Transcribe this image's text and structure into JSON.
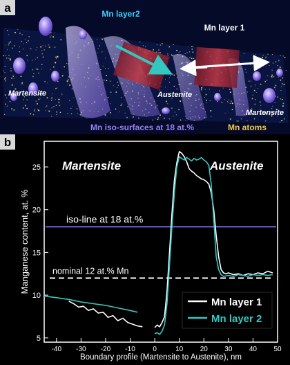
{
  "panel_a": {
    "letter": "a",
    "label_layer2": "Mn layer2",
    "label_layer1": "Mn layer 1",
    "label_martensite_left": "Martensite",
    "label_austenite": "Austenite",
    "label_martensite_right": "Martensite",
    "legend_iso": "Mn iso-surfaces at 18 at.%",
    "legend_atoms": "Mn atoms",
    "colors": {
      "background": "#040a28",
      "atoms": "#e8e070",
      "iso": "#9a7ff0",
      "layer": "#b8303a",
      "arrow_layer2": "#33c7c0",
      "arrow_layer1": "#ffffff"
    }
  },
  "panel_b": {
    "letter": "b",
    "label_martensite": "Martensite",
    "label_austenite": "Austenite",
    "iso_line_label": "iso-line at 18 at.%",
    "nominal_label": "nominal 12 at.% Mn",
    "colors": {
      "layer1": "#ffffff",
      "layer2": "#35c9c4",
      "iso_line": "#7060e0",
      "nominal": "#ffffff"
    }
  },
  "chart_data": {
    "type": "line",
    "xlabel": "Boundary profile (Martensite to Austenite), nm",
    "ylabel": "Manganese content, at. %",
    "xlim": [
      -45,
      50
    ],
    "ylim": [
      4.5,
      28
    ],
    "xticks": [
      -40,
      -30,
      -20,
      -10,
      0,
      10,
      20,
      30,
      40,
      50
    ],
    "yticks": [
      5,
      10,
      15,
      20,
      25
    ],
    "grid": false,
    "legend_position": "bottom-right",
    "reference_lines": [
      {
        "label": "iso-line at 18 at.%",
        "y": 18,
        "style": "solid"
      },
      {
        "label": "nominal 12 at.% Mn",
        "y": 12,
        "style": "dashed"
      }
    ],
    "series": [
      {
        "name": "Mn layer 1",
        "color": "#ffffff",
        "segments": [
          {
            "x": [
              -35,
              -33,
              -31,
              -29,
              -27,
              -25,
              -23,
              -21,
              -19,
              -17,
              -15,
              -13,
              -11,
              -9,
              -7,
              -5
            ],
            "y": [
              9.3,
              9.0,
              8.6,
              8.7,
              8.2,
              8.4,
              7.9,
              8.0,
              7.4,
              7.6,
              7.0,
              7.3,
              6.8,
              6.6,
              6.4,
              6.3
            ]
          },
          {
            "x": [
              0,
              1,
              2,
              3,
              4,
              5,
              6,
              7,
              8,
              9,
              10,
              11,
              12,
              13,
              14,
              15,
              16,
              17,
              18,
              19,
              20,
              21,
              22,
              23,
              24,
              25,
              26,
              27,
              28,
              29,
              30,
              32,
              34,
              36,
              38,
              40,
              42,
              44,
              46,
              48
            ],
            "y": [
              6.2,
              6.5,
              6.3,
              6.8,
              7.5,
              10.5,
              15.0,
              19.5,
              23.5,
              25.5,
              26.8,
              26.6,
              26.2,
              25.6,
              24.8,
              24.5,
              24.3,
              24.0,
              23.8,
              23.6,
              23.5,
              23.3,
              23.0,
              22.0,
              20.0,
              17.0,
              14.5,
              13.0,
              12.6,
              12.5,
              12.6,
              12.4,
              12.5,
              12.3,
              12.5,
              12.4,
              12.6,
              12.5,
              12.8,
              12.6
            ]
          }
        ]
      },
      {
        "name": "Mn layer 2",
        "color": "#35c9c4",
        "segments": [
          {
            "x": [
              -45,
              -40,
              -35,
              -30,
              -25,
              -20,
              -15,
              -10,
              -7
            ],
            "y": [
              9.9,
              9.7,
              9.5,
              9.2,
              9.0,
              8.8,
              8.5,
              8.2,
              8.0
            ]
          },
          {
            "x": [
              0,
              1,
              2,
              3,
              4,
              5,
              6,
              7,
              8,
              9,
              10,
              11,
              12,
              13,
              14,
              15,
              16,
              17,
              18,
              19,
              20,
              21,
              22,
              23,
              24,
              25,
              26,
              27,
              28,
              30,
              32,
              34,
              36,
              38,
              40,
              42,
              44,
              46,
              48
            ],
            "y": [
              5.5,
              5.6,
              5.4,
              5.8,
              6.5,
              9.0,
              13.5,
              18.0,
              22.0,
              25.0,
              26.2,
              26.0,
              25.8,
              26.1,
              25.9,
              25.7,
              26.0,
              25.8,
              25.9,
              26.1,
              25.8,
              25.6,
              25.2,
              23.0,
              19.0,
              14.5,
              13.0,
              12.4,
              12.2,
              12.3,
              12.2,
              12.4,
              12.3,
              12.2,
              12.4,
              12.3,
              12.4,
              12.3,
              12.4
            ]
          }
        ]
      }
    ]
  }
}
